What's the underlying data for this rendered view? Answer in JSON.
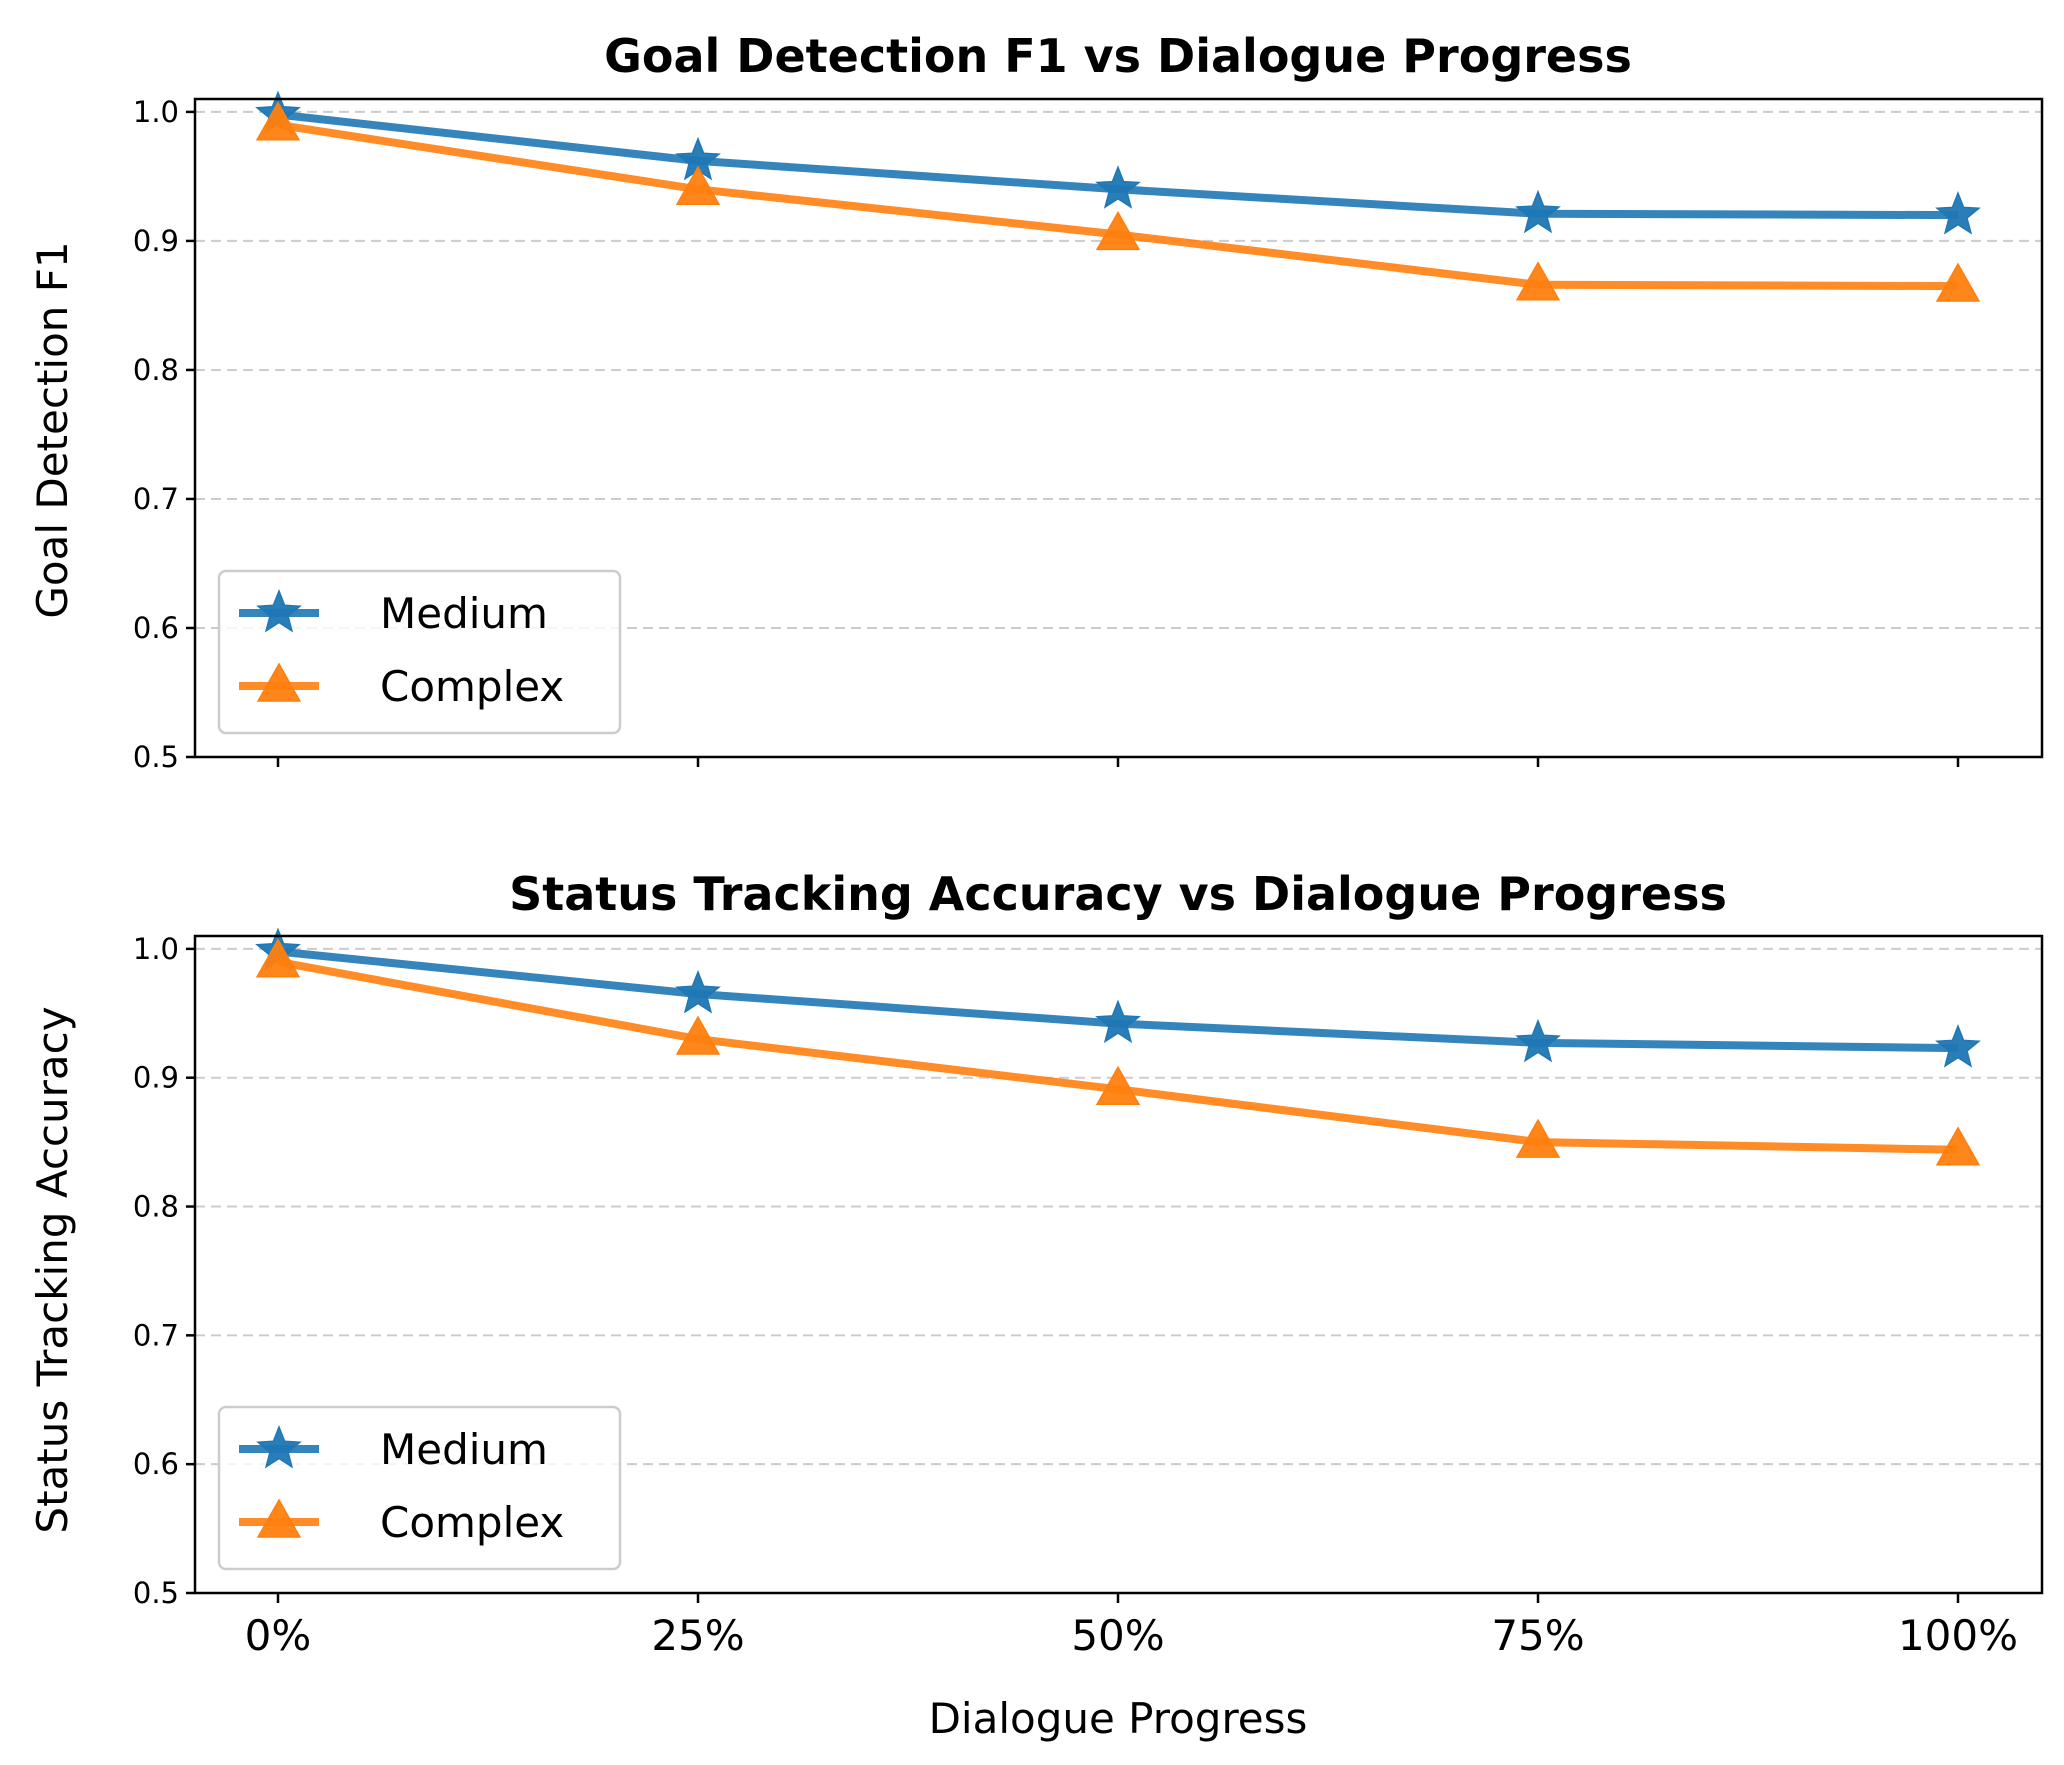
{
  "chart_data": [
    {
      "type": "line",
      "title": "Goal Detection F1 vs Dialogue Progress",
      "xlabel": "",
      "ylabel": "Goal Detection F1",
      "categories": [
        "0%",
        "25%",
        "50%",
        "75%",
        "100%"
      ],
      "ylim": [
        0.5,
        1.01
      ],
      "yticks": [
        "0.5",
        "0.6",
        "0.7",
        "0.8",
        "0.9",
        "1.0"
      ],
      "grid": "y-dashed",
      "legend_position": "lower-left",
      "series": [
        {
          "name": "Medium",
          "marker": "star",
          "color": "#1f77b4",
          "values": [
            0.998,
            0.962,
            0.94,
            0.921,
            0.92
          ]
        },
        {
          "name": "Complex",
          "marker": "triangle",
          "color": "#ff7f0e",
          "values": [
            0.99,
            0.94,
            0.905,
            0.866,
            0.865
          ]
        }
      ]
    },
    {
      "type": "line",
      "title": "Status Tracking Accuracy vs Dialogue Progress",
      "xlabel": "Dialogue Progress",
      "ylabel": "Status Tracking Accuracy",
      "categories": [
        "0%",
        "25%",
        "50%",
        "75%",
        "100%"
      ],
      "ylim": [
        0.5,
        1.01
      ],
      "yticks": [
        "0.5",
        "0.6",
        "0.7",
        "0.8",
        "0.9",
        "1.0"
      ],
      "grid": "y-dashed",
      "legend_position": "lower-left",
      "series": [
        {
          "name": "Medium",
          "marker": "star",
          "color": "#1f77b4",
          "values": [
            0.998,
            0.965,
            0.942,
            0.927,
            0.923
          ]
        },
        {
          "name": "Complex",
          "marker": "triangle",
          "color": "#ff7f0e",
          "values": [
            0.99,
            0.93,
            0.891,
            0.85,
            0.844
          ]
        }
      ]
    }
  ]
}
